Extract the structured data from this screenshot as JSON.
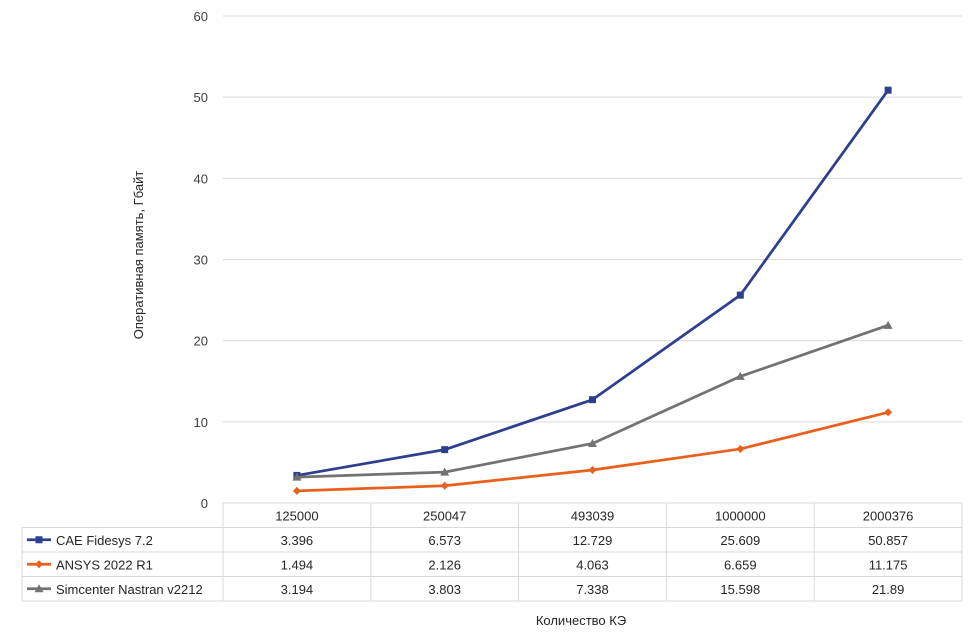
{
  "chart_data": {
    "type": "line",
    "categories": [
      "125000",
      "250047",
      "493039",
      "1000000",
      "2000376"
    ],
    "ylabel": "Оперативная память, Гбайт",
    "xlabel": "Количество КЭ",
    "ylim": [
      0,
      60
    ],
    "yticks": [
      "0",
      "10",
      "20",
      "30",
      "40",
      "50",
      "60"
    ],
    "grid": true,
    "legend": "data-table",
    "series": [
      {
        "name": "CAE Fidesys 7.2",
        "color": "#2E3F8F",
        "marker": "square",
        "values": [
          3.396,
          6.573,
          12.729,
          25.609,
          50.857
        ],
        "labels": [
          "3.396",
          "6.573",
          "12.729",
          "25.609",
          "50.857"
        ]
      },
      {
        "name": "ANSYS 2022 R1",
        "color": "#E8601C",
        "marker": "diamond",
        "values": [
          1.494,
          2.126,
          4.063,
          6.659,
          11.175
        ],
        "labels": [
          "1.494",
          "2.126",
          "4.063",
          "6.659",
          "11.175"
        ]
      },
      {
        "name": "Simcenter Nastran v2212",
        "color": "#727272",
        "marker": "triangle",
        "values": [
          3.194,
          3.803,
          7.338,
          15.598,
          21.89
        ],
        "labels": [
          "3.194",
          "3.803",
          "7.338",
          "15.598",
          "21.89"
        ]
      }
    ]
  }
}
